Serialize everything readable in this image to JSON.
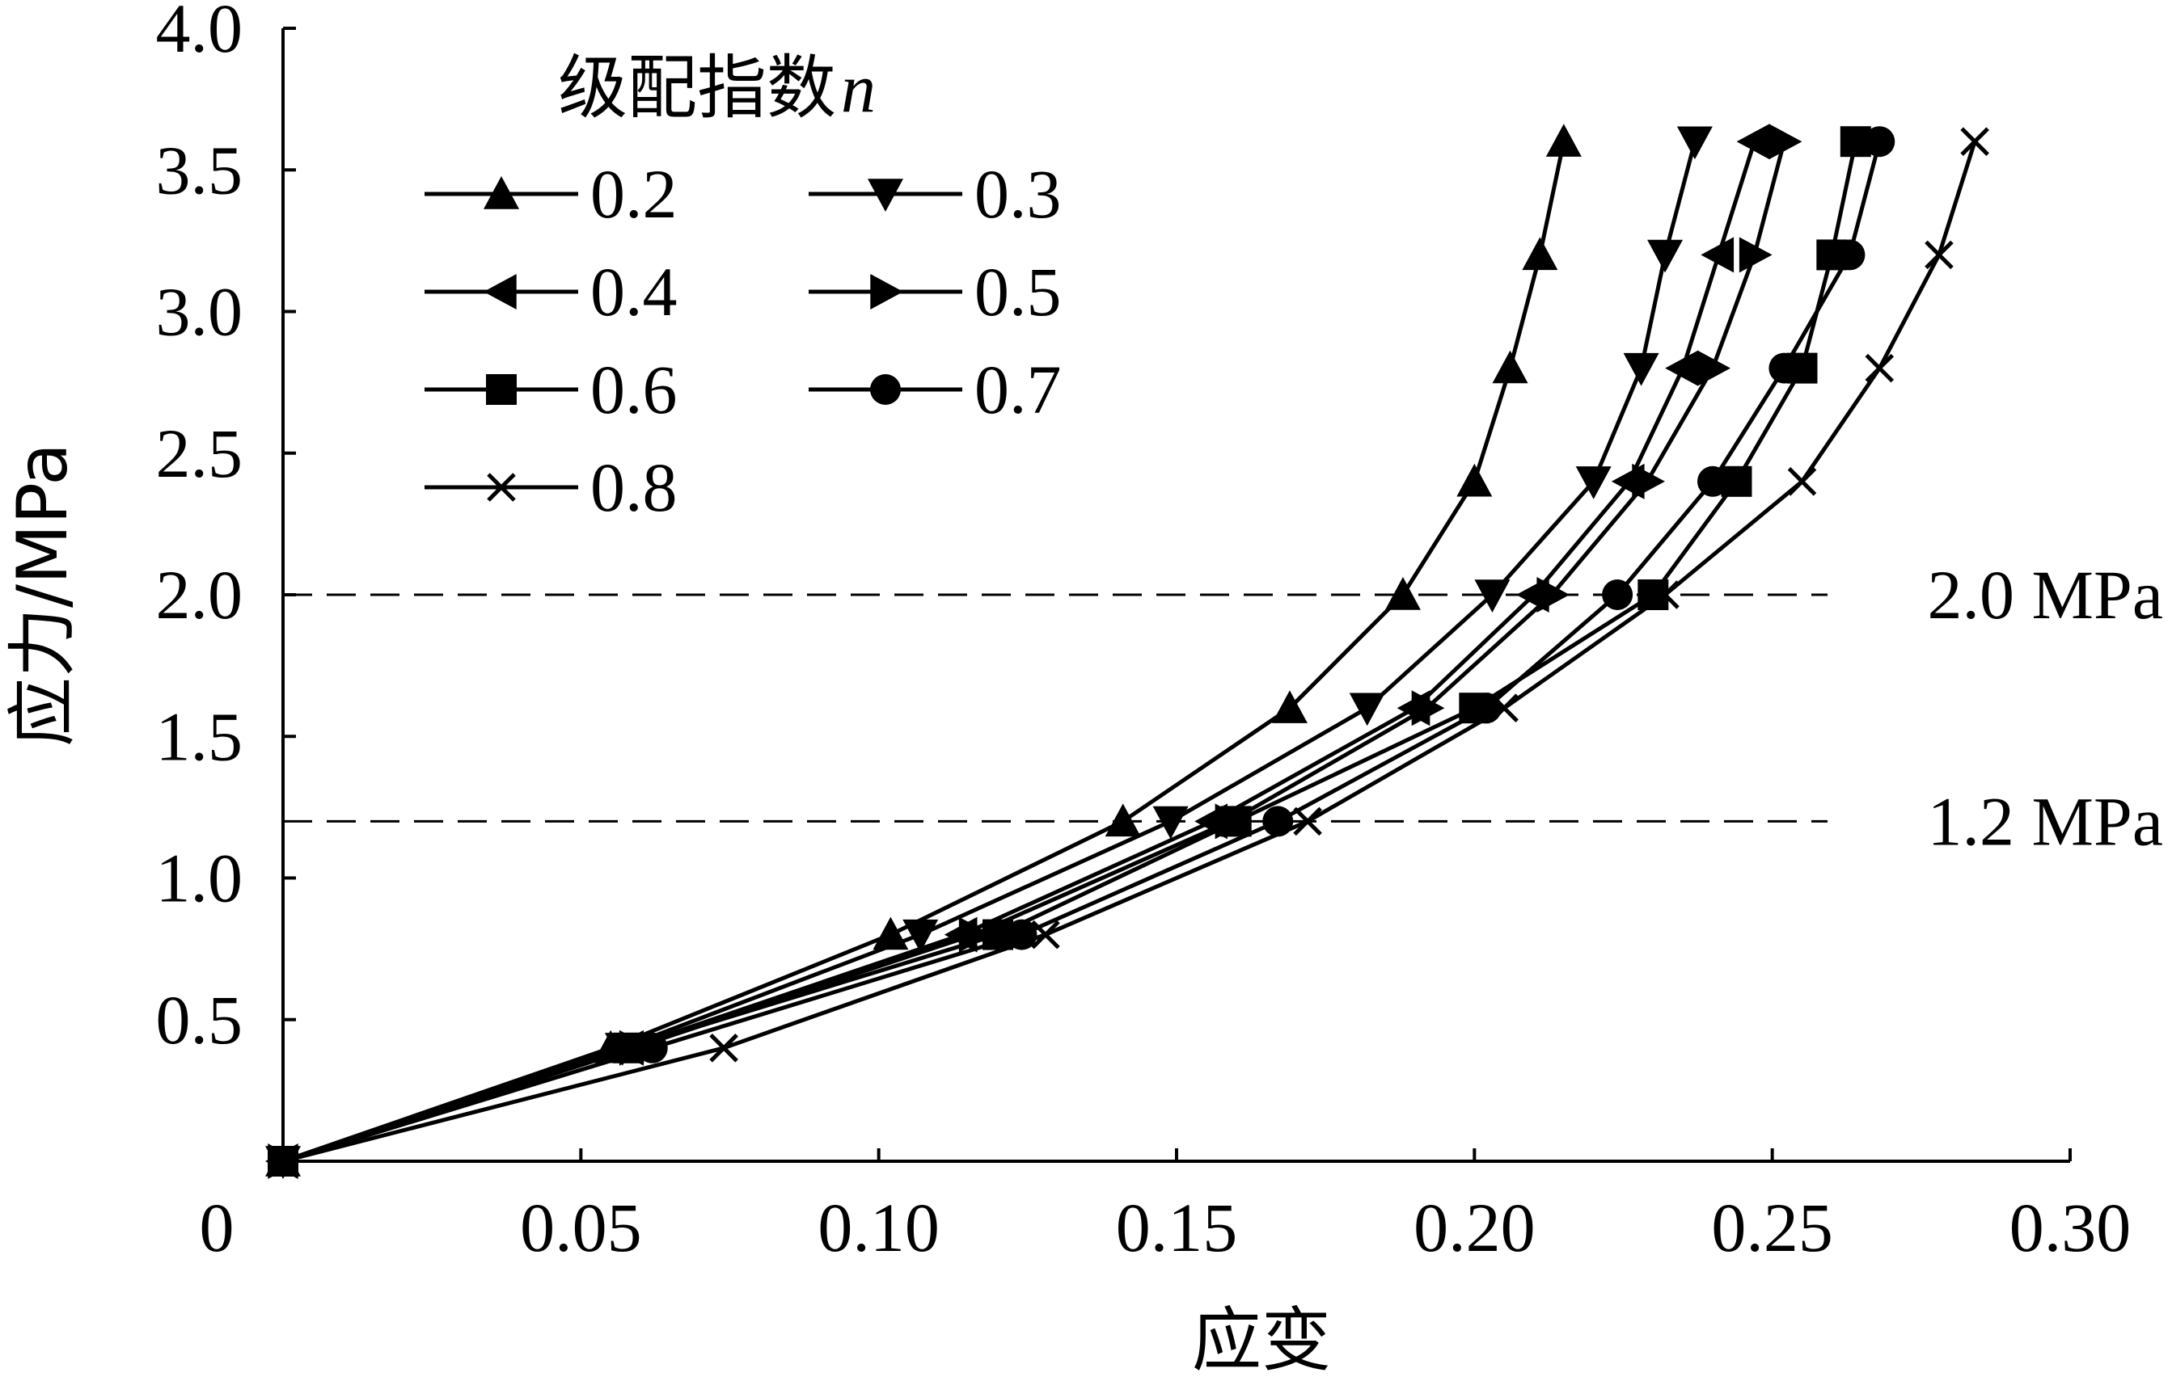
{
  "chart_data": {
    "type": "line",
    "title": "",
    "xlabel": "应变",
    "ylabel": "应力/MPa",
    "xlim": [
      0,
      0.3
    ],
    "ylim": [
      0,
      4.0
    ],
    "x_ticks": [
      "0",
      "0.05",
      "0.10",
      "0.15",
      "0.20",
      "0.25",
      "0.30"
    ],
    "y_ticks": [
      "0.5",
      "1.0",
      "1.5",
      "2.0",
      "2.5",
      "3.0",
      "3.5",
      "4.0"
    ],
    "grid": false,
    "legend": {
      "title_prefix": "级配指数",
      "title_var": "n",
      "placement": "top-left"
    },
    "reference_lines": [
      {
        "y": 2.0,
        "label": "2.0 MPa"
      },
      {
        "y": 1.2,
        "label": "1.2 MPa"
      }
    ],
    "series": [
      {
        "name": "0.2",
        "marker": "triangle-up",
        "points": [
          [
            0,
            0
          ],
          [
            0.055,
            0.4
          ],
          [
            0.102,
            0.8
          ],
          [
            0.141,
            1.2
          ],
          [
            0.169,
            1.6
          ],
          [
            0.188,
            2.0
          ],
          [
            0.2,
            2.4
          ],
          [
            0.206,
            2.8
          ],
          [
            0.211,
            3.2
          ],
          [
            0.215,
            3.6
          ]
        ]
      },
      {
        "name": "0.3",
        "marker": "triangle-down",
        "points": [
          [
            0,
            0
          ],
          [
            0.057,
            0.4
          ],
          [
            0.107,
            0.8
          ],
          [
            0.149,
            1.2
          ],
          [
            0.182,
            1.6
          ],
          [
            0.203,
            2.0
          ],
          [
            0.22,
            2.4
          ],
          [
            0.228,
            2.8
          ],
          [
            0.232,
            3.2
          ],
          [
            0.237,
            3.6
          ]
        ]
      },
      {
        "name": "0.4",
        "marker": "triangle-left",
        "points": [
          [
            0,
            0
          ],
          [
            0.058,
            0.4
          ],
          [
            0.114,
            0.8
          ],
          [
            0.156,
            1.2
          ],
          [
            0.19,
            1.6
          ],
          [
            0.21,
            2.0
          ],
          [
            0.226,
            2.4
          ],
          [
            0.235,
            2.8
          ],
          [
            0.241,
            3.2
          ],
          [
            0.247,
            3.6
          ]
        ]
      },
      {
        "name": "0.5",
        "marker": "triangle-right",
        "points": [
          [
            0,
            0
          ],
          [
            0.059,
            0.4
          ],
          [
            0.116,
            0.8
          ],
          [
            0.159,
            1.2
          ],
          [
            0.192,
            1.6
          ],
          [
            0.213,
            2.0
          ],
          [
            0.229,
            2.4
          ],
          [
            0.24,
            2.8
          ],
          [
            0.247,
            3.2
          ],
          [
            0.252,
            3.6
          ]
        ]
      },
      {
        "name": "0.6",
        "marker": "square",
        "points": [
          [
            0,
            0
          ],
          [
            0.058,
            0.4
          ],
          [
            0.12,
            0.8
          ],
          [
            0.16,
            1.2
          ],
          [
            0.2,
            1.6
          ],
          [
            0.23,
            2.0
          ],
          [
            0.244,
            2.4
          ],
          [
            0.255,
            2.8
          ],
          [
            0.26,
            3.2
          ],
          [
            0.264,
            3.6
          ]
        ]
      },
      {
        "name": "0.7",
        "marker": "circle",
        "points": [
          [
            0,
            0
          ],
          [
            0.062,
            0.4
          ],
          [
            0.124,
            0.8
          ],
          [
            0.167,
            1.2
          ],
          [
            0.202,
            1.6
          ],
          [
            0.224,
            2.0
          ],
          [
            0.24,
            2.4
          ],
          [
            0.252,
            2.8
          ],
          [
            0.263,
            3.2
          ],
          [
            0.268,
            3.6
          ]
        ]
      },
      {
        "name": "0.8",
        "marker": "x",
        "points": [
          [
            0,
            0
          ],
          [
            0.074,
            0.4
          ],
          [
            0.128,
            0.8
          ],
          [
            0.172,
            1.2
          ],
          [
            0.205,
            1.6
          ],
          [
            0.232,
            2.0
          ],
          [
            0.255,
            2.4
          ],
          [
            0.268,
            2.8
          ],
          [
            0.278,
            3.2
          ],
          [
            0.284,
            3.6
          ]
        ]
      }
    ]
  }
}
